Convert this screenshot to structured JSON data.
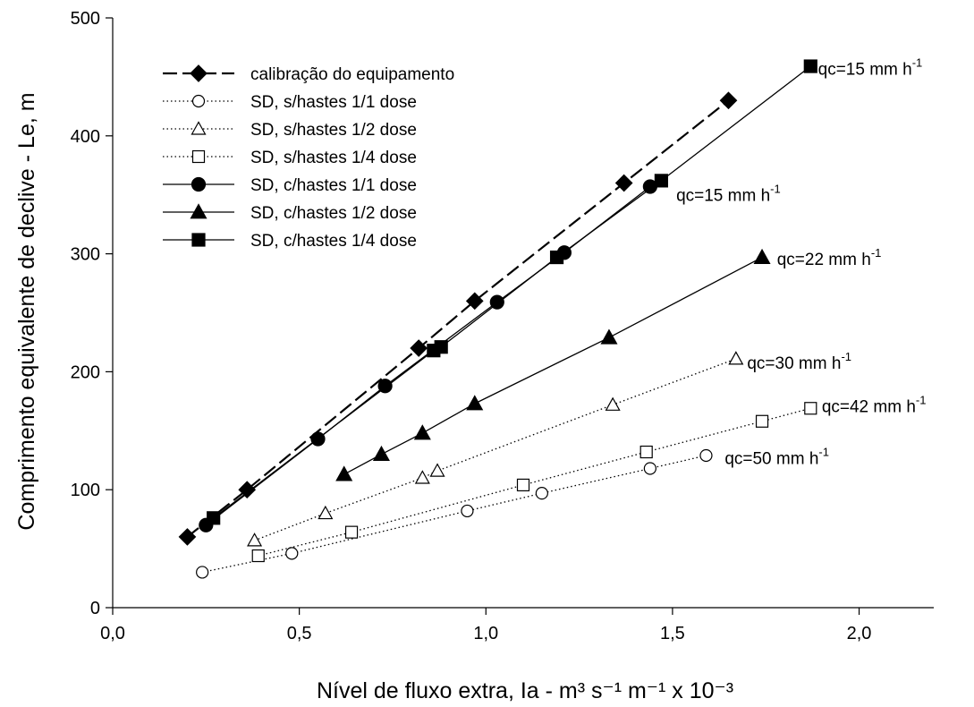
{
  "chart_data": {
    "type": "line",
    "title": "",
    "xlabel": "Nível de fluxo extra, Ia - m³ s⁻¹ m⁻¹ x 10⁻³",
    "ylabel": "Comprimento equivalente de declive - Le, m",
    "xlim": [
      0,
      2.2
    ],
    "ylim": [
      0,
      500
    ],
    "xticks": [
      "0,0",
      "0,5",
      "1,0",
      "1,5",
      "2,0"
    ],
    "xtick_values": [
      0,
      0.5,
      1.0,
      1.5,
      2.0
    ],
    "yticks": [
      "0",
      "100",
      "200",
      "300",
      "400",
      "500"
    ],
    "ytick_values": [
      0,
      100,
      200,
      300,
      400,
      500
    ],
    "grid": false,
    "legend_position": "top-left",
    "series": [
      {
        "name": "calibração do equipamento",
        "line": "dashed",
        "marker": "diamond",
        "filled": true,
        "x": [
          0.2,
          0.36,
          0.82,
          0.97,
          1.37,
          1.65
        ],
        "y": [
          60,
          100,
          220,
          260,
          360,
          430
        ]
      },
      {
        "name": "SD, s/hastes 1/1 dose",
        "line": "dotted",
        "marker": "circle",
        "filled": false,
        "x": [
          0.24,
          0.48,
          0.95,
          1.15,
          1.44,
          1.59
        ],
        "y": [
          30,
          46,
          82,
          97,
          118,
          129
        ]
      },
      {
        "name": "SD, s/hastes 1/2 dose",
        "line": "dotted",
        "marker": "triangle",
        "filled": false,
        "x": [
          0.38,
          0.57,
          0.83,
          0.87,
          1.34,
          1.67
        ],
        "y": [
          57,
          80,
          110,
          116,
          172,
          211
        ]
      },
      {
        "name": "SD, s/hastes 1/4 dose",
        "line": "dotted",
        "marker": "square",
        "filled": false,
        "x": [
          0.39,
          0.64,
          1.1,
          1.43,
          1.74,
          1.87
        ],
        "y": [
          44,
          64,
          104,
          132,
          158,
          169
        ]
      },
      {
        "name": "SD, c/hastes 1/1 dose",
        "line": "solid",
        "marker": "circle",
        "filled": true,
        "x": [
          0.25,
          0.55,
          0.73,
          1.03,
          1.21,
          1.44
        ],
        "y": [
          70,
          143,
          188,
          259,
          301,
          357
        ]
      },
      {
        "name": "SD, c/hastes 1/2 dose",
        "line": "solid",
        "marker": "triangle",
        "filled": true,
        "x": [
          0.62,
          0.72,
          0.83,
          0.97,
          1.33,
          1.74
        ],
        "y": [
          113,
          130,
          148,
          173,
          229,
          297
        ]
      },
      {
        "name": "SD, c/hastes 1/4 dose",
        "line": "solid",
        "marker": "square",
        "filled": true,
        "x": [
          0.27,
          0.86,
          0.88,
          1.19,
          1.47,
          1.87
        ],
        "y": [
          76,
          218,
          221,
          297,
          362,
          459
        ]
      }
    ],
    "annotations": [
      {
        "text": "qc=15 mm h",
        "sup": "-1",
        "x": 1.89,
        "y": 457
      },
      {
        "text": "qc=15 mm h",
        "sup": "-1",
        "x": 1.51,
        "y": 350
      },
      {
        "text": "qc=22 mm h",
        "sup": "-1",
        "x": 1.78,
        "y": 296
      },
      {
        "text": "qc=30 mm h",
        "sup": "-1",
        "x": 1.7,
        "y": 208
      },
      {
        "text": "qc=42 mm h",
        "sup": "-1",
        "x": 1.9,
        "y": 171
      },
      {
        "text": "qc=50 mm h",
        "sup": "-1",
        "x": 1.64,
        "y": 127
      }
    ]
  }
}
